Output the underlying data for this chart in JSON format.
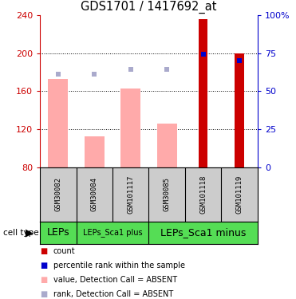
{
  "title": "GDS1701 / 1417692_at",
  "samples": [
    "GSM30082",
    "GSM30084",
    "GSM101117",
    "GSM30085",
    "GSM101118",
    "GSM101119"
  ],
  "bar_bottom": 80,
  "ylim_left": [
    80,
    240
  ],
  "ylim_right": [
    0,
    100
  ],
  "yticks_left": [
    80,
    120,
    160,
    200,
    240
  ],
  "yticks_right": [
    0,
    25,
    50,
    75,
    100
  ],
  "ytick_labels_right": [
    "0",
    "25",
    "50",
    "75",
    "100%"
  ],
  "red_bars": [
    null,
    null,
    null,
    null,
    236,
    200
  ],
  "blue_markers_pct": [
    null,
    null,
    null,
    null,
    74,
    70
  ],
  "pink_bars": [
    173,
    113,
    163,
    126,
    null,
    null
  ],
  "lavender_markers": [
    178,
    178,
    183,
    183,
    null,
    null
  ],
  "colors": {
    "red_bar": "#cc0000",
    "blue_marker": "#0000cc",
    "pink_bar": "#ffaaaa",
    "lavender_marker": "#aaaacc",
    "axis_left": "#cc0000",
    "axis_right": "#0000cc",
    "sample_bg": "#cccccc",
    "cell_type_bg": "#55dd55"
  },
  "cell_groups": [
    {
      "start": 0,
      "end": 0,
      "label": "LEPs",
      "fontsize": 9
    },
    {
      "start": 1,
      "end": 2,
      "label": "LEPs_Sca1 plus",
      "fontsize": 7
    },
    {
      "start": 3,
      "end": 5,
      "label": "LEPs_Sca1 minus",
      "fontsize": 9
    }
  ],
  "legend_items": [
    {
      "color": "#cc0000",
      "label": "count"
    },
    {
      "color": "#0000cc",
      "label": "percentile rank within the sample"
    },
    {
      "color": "#ffaaaa",
      "label": "value, Detection Call = ABSENT"
    },
    {
      "color": "#aaaacc",
      "label": "rank, Detection Call = ABSENT"
    }
  ]
}
